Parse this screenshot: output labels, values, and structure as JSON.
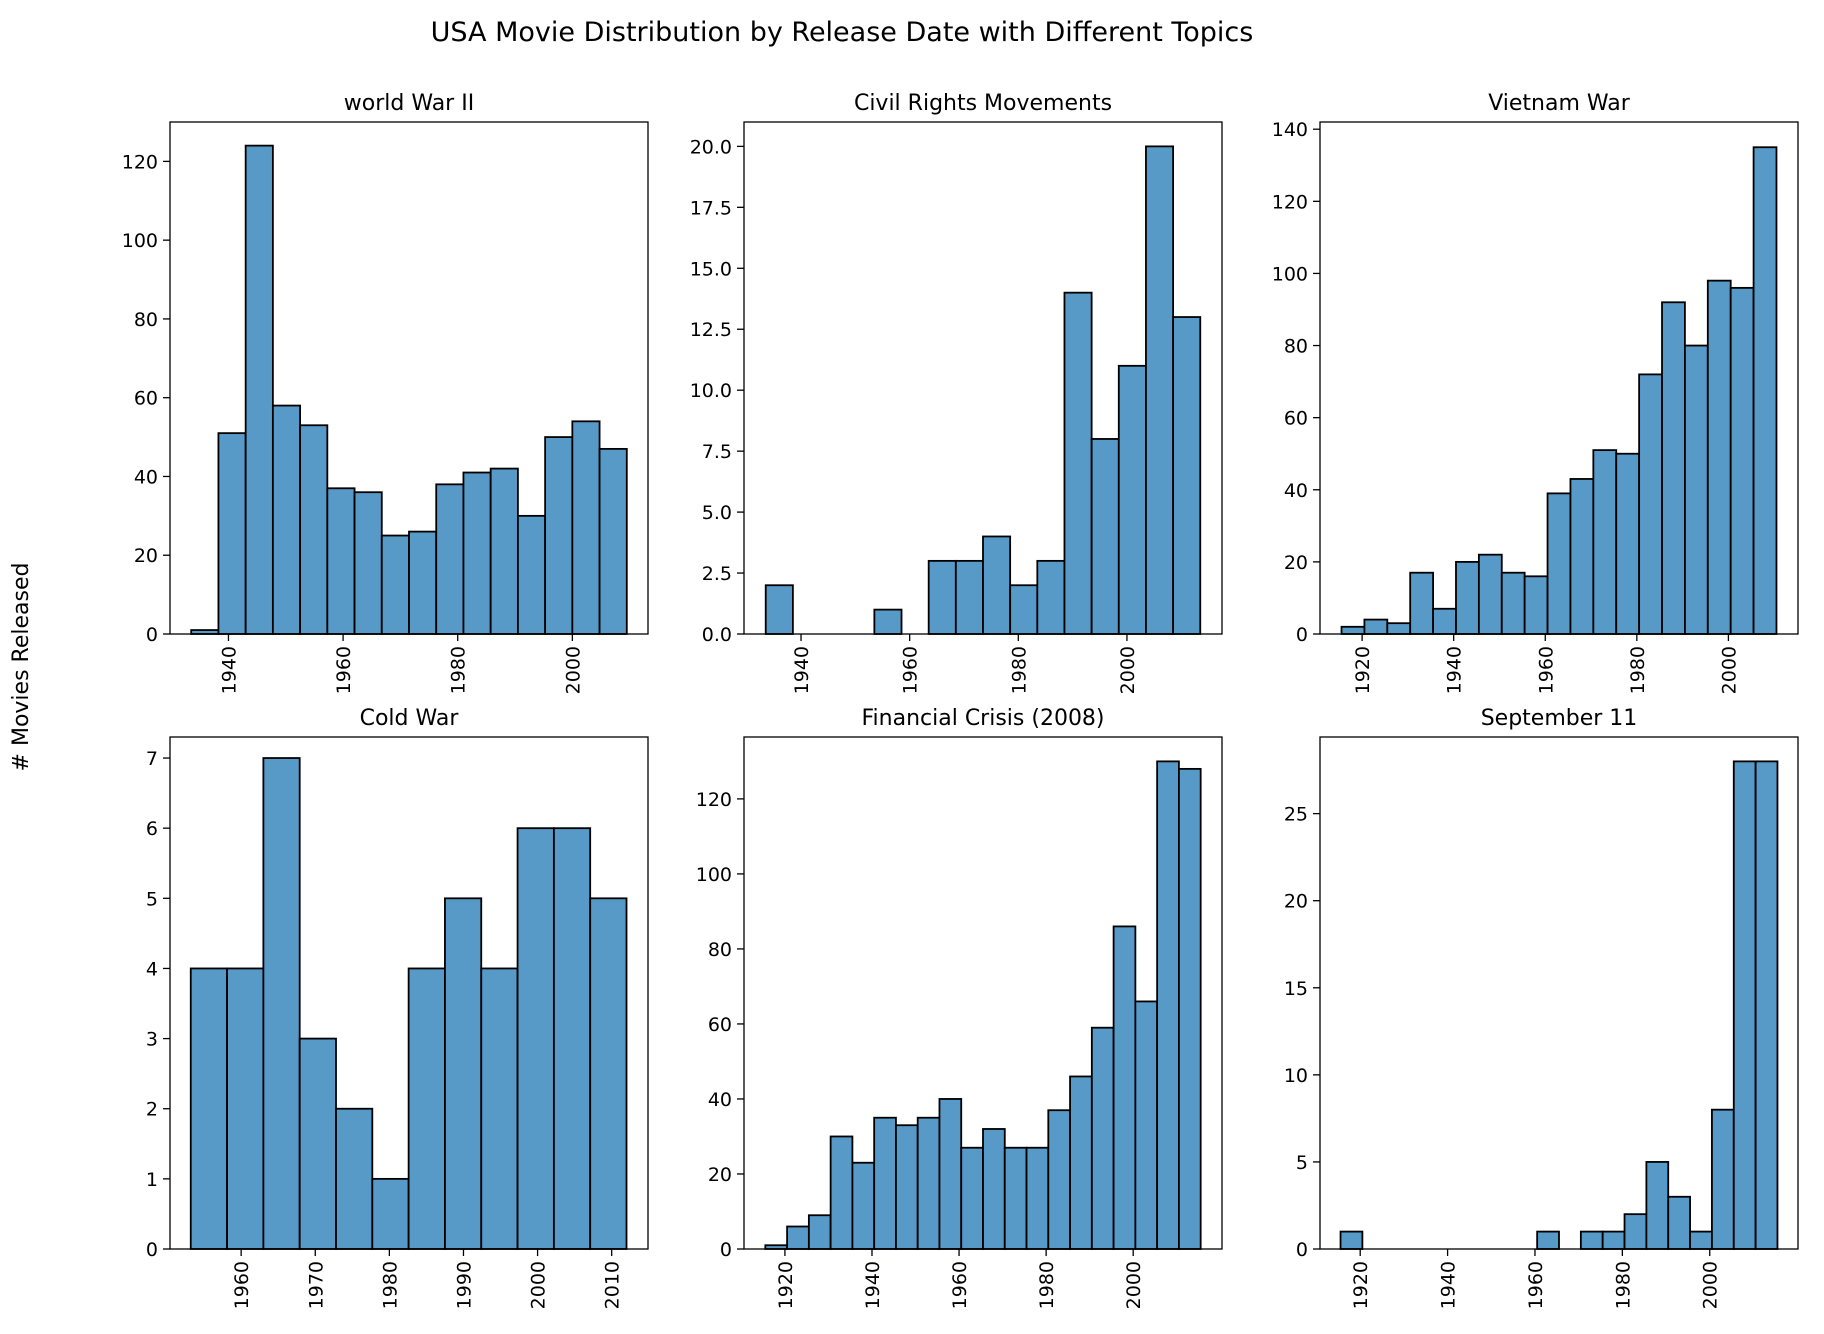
{
  "figure": {
    "title": "USA Movie Distribution by Release Date with Different Topics",
    "ylabel": "# Movies Released"
  },
  "colors": {
    "bar_fill": "#5799c7",
    "bar_edge": "#000000",
    "axes_edge": "#000000",
    "background": "#ffffff"
  },
  "chart_data": [
    {
      "type": "bar",
      "title": "world War II",
      "bins": [
        {
          "x0": 1933.5,
          "x1": 1938.25,
          "count": 1
        },
        {
          "x0": 1938.25,
          "x1": 1943.0,
          "count": 51
        },
        {
          "x0": 1943.0,
          "x1": 1947.75,
          "count": 124
        },
        {
          "x0": 1947.75,
          "x1": 1952.5,
          "count": 58
        },
        {
          "x0": 1952.5,
          "x1": 1957.25,
          "count": 53
        },
        {
          "x0": 1957.25,
          "x1": 1962.0,
          "count": 37
        },
        {
          "x0": 1962.0,
          "x1": 1966.75,
          "count": 36
        },
        {
          "x0": 1966.75,
          "x1": 1971.5,
          "count": 25
        },
        {
          "x0": 1971.5,
          "x1": 1976.25,
          "count": 26
        },
        {
          "x0": 1976.25,
          "x1": 1981.0,
          "count": 38
        },
        {
          "x0": 1981.0,
          "x1": 1985.75,
          "count": 41
        },
        {
          "x0": 1985.75,
          "x1": 1990.5,
          "count": 42
        },
        {
          "x0": 1990.5,
          "x1": 1995.25,
          "count": 30
        },
        {
          "x0": 1995.25,
          "x1": 2000.0,
          "count": 50
        },
        {
          "x0": 2000.0,
          "x1": 2004.75,
          "count": 54
        },
        {
          "x0": 2004.75,
          "x1": 2009.5,
          "count": 47
        }
      ],
      "xlim": [
        1929.8,
        2013.2
      ],
      "ylim": [
        0,
        130
      ],
      "xticks": [
        1940,
        1960,
        1980,
        2000
      ],
      "yticks": [
        0,
        20,
        40,
        60,
        80,
        100,
        120
      ],
      "xtick_labels": [
        "1940",
        "1960",
        "1980",
        "2000"
      ],
      "ytick_labels": [
        "0",
        "20",
        "40",
        "60",
        "80",
        "100",
        "120"
      ],
      "xtick_rotation": 90,
      "grid": false
    },
    {
      "type": "bar",
      "title": "Civil Rights Movements",
      "bins": [
        {
          "x0": 1933.5,
          "x1": 1938.5,
          "count": 2
        },
        {
          "x0": 1938.5,
          "x1": 1943.5,
          "count": 0
        },
        {
          "x0": 1943.5,
          "x1": 1948.5,
          "count": 0
        },
        {
          "x0": 1948.5,
          "x1": 1953.5,
          "count": 0
        },
        {
          "x0": 1953.5,
          "x1": 1958.5,
          "count": 1
        },
        {
          "x0": 1958.5,
          "x1": 1963.5,
          "count": 0
        },
        {
          "x0": 1963.5,
          "x1": 1968.5,
          "count": 3
        },
        {
          "x0": 1968.5,
          "x1": 1973.5,
          "count": 3
        },
        {
          "x0": 1973.5,
          "x1": 1978.5,
          "count": 4
        },
        {
          "x0": 1978.5,
          "x1": 1983.5,
          "count": 2
        },
        {
          "x0": 1983.5,
          "x1": 1988.5,
          "count": 3
        },
        {
          "x0": 1988.5,
          "x1": 1993.5,
          "count": 14
        },
        {
          "x0": 1993.5,
          "x1": 1998.5,
          "count": 8
        },
        {
          "x0": 1998.5,
          "x1": 2003.5,
          "count": 11
        },
        {
          "x0": 2003.5,
          "x1": 2008.5,
          "count": 20
        },
        {
          "x0": 2008.5,
          "x1": 2013.5,
          "count": 13
        }
      ],
      "xlim": [
        1929.5,
        2017.5
      ],
      "ylim": [
        0,
        21
      ],
      "xticks": [
        1940,
        1960,
        1980,
        2000
      ],
      "yticks": [
        0,
        2.5,
        5,
        7.5,
        10,
        12.5,
        15,
        17.5,
        20
      ],
      "xtick_labels": [
        "1940",
        "1960",
        "1980",
        "2000"
      ],
      "ytick_labels": [
        "0.0",
        "2.5",
        "5.0",
        "7.5",
        "10.0",
        "12.5",
        "15.0",
        "17.5",
        "20.0"
      ],
      "xtick_rotation": 90,
      "grid": false
    },
    {
      "type": "bar",
      "title": "Vietnam War",
      "bins": [
        {
          "x0": 1915.5,
          "x1": 1920.5,
          "count": 2
        },
        {
          "x0": 1920.5,
          "x1": 1925.5,
          "count": 4
        },
        {
          "x0": 1925.5,
          "x1": 1930.5,
          "count": 3
        },
        {
          "x0": 1930.5,
          "x1": 1935.5,
          "count": 17
        },
        {
          "x0": 1935.5,
          "x1": 1940.5,
          "count": 7
        },
        {
          "x0": 1940.5,
          "x1": 1945.5,
          "count": 20
        },
        {
          "x0": 1945.5,
          "x1": 1950.5,
          "count": 22
        },
        {
          "x0": 1950.5,
          "x1": 1955.5,
          "count": 17
        },
        {
          "x0": 1955.5,
          "x1": 1960.5,
          "count": 16
        },
        {
          "x0": 1960.5,
          "x1": 1965.5,
          "count": 39
        },
        {
          "x0": 1965.5,
          "x1": 1970.5,
          "count": 43
        },
        {
          "x0": 1970.5,
          "x1": 1975.5,
          "count": 51
        },
        {
          "x0": 1975.5,
          "x1": 1980.5,
          "count": 50
        },
        {
          "x0": 1980.5,
          "x1": 1985.5,
          "count": 72
        },
        {
          "x0": 1985.5,
          "x1": 1990.5,
          "count": 92
        },
        {
          "x0": 1990.5,
          "x1": 1995.5,
          "count": 80
        },
        {
          "x0": 1995.5,
          "x1": 2000.5,
          "count": 98
        },
        {
          "x0": 2000.5,
          "x1": 2005.5,
          "count": 96
        },
        {
          "x0": 2005.5,
          "x1": 2010.5,
          "count": 135
        }
      ],
      "xlim": [
        1910.8,
        2015.2
      ],
      "ylim": [
        0,
        142
      ],
      "xticks": [
        1920,
        1940,
        1960,
        1980,
        2000
      ],
      "yticks": [
        0,
        20,
        40,
        60,
        80,
        100,
        120,
        140
      ],
      "xtick_labels": [
        "1920",
        "1940",
        "1960",
        "1980",
        "2000"
      ],
      "ytick_labels": [
        "0",
        "20",
        "40",
        "60",
        "80",
        "100",
        "120",
        "140"
      ],
      "xtick_rotation": 90,
      "grid": false
    },
    {
      "type": "bar",
      "title": "Cold War",
      "bins": [
        {
          "x0": 1953.2,
          "x1": 1958.1,
          "count": 4
        },
        {
          "x0": 1958.1,
          "x1": 1963.0,
          "count": 4
        },
        {
          "x0": 1963.0,
          "x1": 1967.9,
          "count": 7
        },
        {
          "x0": 1967.9,
          "x1": 1972.8,
          "count": 3
        },
        {
          "x0": 1972.8,
          "x1": 1977.7,
          "count": 2
        },
        {
          "x0": 1977.7,
          "x1": 1982.6,
          "count": 1
        },
        {
          "x0": 1982.6,
          "x1": 1987.5,
          "count": 4
        },
        {
          "x0": 1987.5,
          "x1": 1992.4,
          "count": 5
        },
        {
          "x0": 1992.4,
          "x1": 1997.3,
          "count": 4
        },
        {
          "x0": 1997.3,
          "x1": 2002.2,
          "count": 6
        },
        {
          "x0": 2002.2,
          "x1": 2007.1,
          "count": 6
        },
        {
          "x0": 2007.1,
          "x1": 2012.0,
          "count": 5
        }
      ],
      "xlim": [
        1950.4,
        2014.9
      ],
      "ylim": [
        0,
        7.3
      ],
      "xticks": [
        1960,
        1970,
        1980,
        1990,
        2000,
        2010
      ],
      "yticks": [
        0,
        1,
        2,
        3,
        4,
        5,
        6,
        7
      ],
      "xtick_labels": [
        "1960",
        "1970",
        "1980",
        "1990",
        "2000",
        "2010"
      ],
      "ytick_labels": [
        "0",
        "1",
        "2",
        "3",
        "4",
        "5",
        "6",
        "7"
      ],
      "xtick_rotation": 90,
      "grid": false
    },
    {
      "type": "bar",
      "title": "Financial Crisis (2008)",
      "bins": [
        {
          "x0": 1915.5,
          "x1": 1920.5,
          "count": 1
        },
        {
          "x0": 1920.5,
          "x1": 1925.5,
          "count": 6
        },
        {
          "x0": 1925.5,
          "x1": 1930.5,
          "count": 9
        },
        {
          "x0": 1930.5,
          "x1": 1935.5,
          "count": 30
        },
        {
          "x0": 1935.5,
          "x1": 1940.5,
          "count": 23
        },
        {
          "x0": 1940.5,
          "x1": 1945.5,
          "count": 35
        },
        {
          "x0": 1945.5,
          "x1": 1950.5,
          "count": 33
        },
        {
          "x0": 1950.5,
          "x1": 1955.5,
          "count": 35
        },
        {
          "x0": 1955.5,
          "x1": 1960.5,
          "count": 40
        },
        {
          "x0": 1960.5,
          "x1": 1965.5,
          "count": 27
        },
        {
          "x0": 1965.5,
          "x1": 1970.5,
          "count": 32
        },
        {
          "x0": 1970.5,
          "x1": 1975.5,
          "count": 27
        },
        {
          "x0": 1975.5,
          "x1": 1980.5,
          "count": 27
        },
        {
          "x0": 1980.5,
          "x1": 1985.5,
          "count": 37
        },
        {
          "x0": 1985.5,
          "x1": 1990.5,
          "count": 46
        },
        {
          "x0": 1990.5,
          "x1": 1995.5,
          "count": 59
        },
        {
          "x0": 1995.5,
          "x1": 2000.5,
          "count": 86
        },
        {
          "x0": 2000.5,
          "x1": 2005.5,
          "count": 66
        },
        {
          "x0": 2005.5,
          "x1": 2010.5,
          "count": 130
        },
        {
          "x0": 2010.5,
          "x1": 2015.5,
          "count": 128
        }
      ],
      "xlim": [
        1910.6,
        2020.4
      ],
      "ylim": [
        0,
        136.5
      ],
      "xticks": [
        1920,
        1940,
        1960,
        1980,
        2000
      ],
      "yticks": [
        0,
        20,
        40,
        60,
        80,
        100,
        120
      ],
      "xtick_labels": [
        "1920",
        "1940",
        "1960",
        "1980",
        "2000"
      ],
      "ytick_labels": [
        "0",
        "20",
        "40",
        "60",
        "80",
        "100",
        "120"
      ],
      "xtick_rotation": 90,
      "grid": false
    },
    {
      "type": "bar",
      "title": "September 11",
      "bins": [
        {
          "x0": 1915.5,
          "x1": 1920.5,
          "count": 1
        },
        {
          "x0": 1920.5,
          "x1": 1925.5,
          "count": 0
        },
        {
          "x0": 1925.5,
          "x1": 1930.5,
          "count": 0
        },
        {
          "x0": 1930.5,
          "x1": 1935.5,
          "count": 0
        },
        {
          "x0": 1935.5,
          "x1": 1940.5,
          "count": 0
        },
        {
          "x0": 1940.5,
          "x1": 1945.5,
          "count": 0
        },
        {
          "x0": 1945.5,
          "x1": 1950.5,
          "count": 0
        },
        {
          "x0": 1950.5,
          "x1": 1955.5,
          "count": 0
        },
        {
          "x0": 1955.5,
          "x1": 1960.5,
          "count": 0
        },
        {
          "x0": 1960.5,
          "x1": 1965.5,
          "count": 1
        },
        {
          "x0": 1965.5,
          "x1": 1970.5,
          "count": 0
        },
        {
          "x0": 1970.5,
          "x1": 1975.5,
          "count": 1
        },
        {
          "x0": 1975.5,
          "x1": 1980.5,
          "count": 1
        },
        {
          "x0": 1980.5,
          "x1": 1985.5,
          "count": 2
        },
        {
          "x0": 1985.5,
          "x1": 1990.5,
          "count": 5
        },
        {
          "x0": 1990.5,
          "x1": 1995.5,
          "count": 3
        },
        {
          "x0": 1995.5,
          "x1": 2000.5,
          "count": 1
        },
        {
          "x0": 2000.5,
          "x1": 2005.5,
          "count": 8
        },
        {
          "x0": 2005.5,
          "x1": 2010.5,
          "count": 28
        },
        {
          "x0": 2010.5,
          "x1": 2015.5,
          "count": 28
        }
      ],
      "xlim": [
        1910.8,
        2020.2
      ],
      "ylim": [
        0,
        29.4
      ],
      "xticks": [
        1920,
        1940,
        1960,
        1980,
        2000
      ],
      "yticks": [
        0,
        5,
        10,
        15,
        20,
        25
      ],
      "xtick_labels": [
        "1920",
        "1940",
        "1960",
        "1980",
        "2000"
      ],
      "ytick_labels": [
        "0",
        "5",
        "10",
        "15",
        "20",
        "25"
      ],
      "xtick_rotation": 90,
      "grid": false
    }
  ]
}
